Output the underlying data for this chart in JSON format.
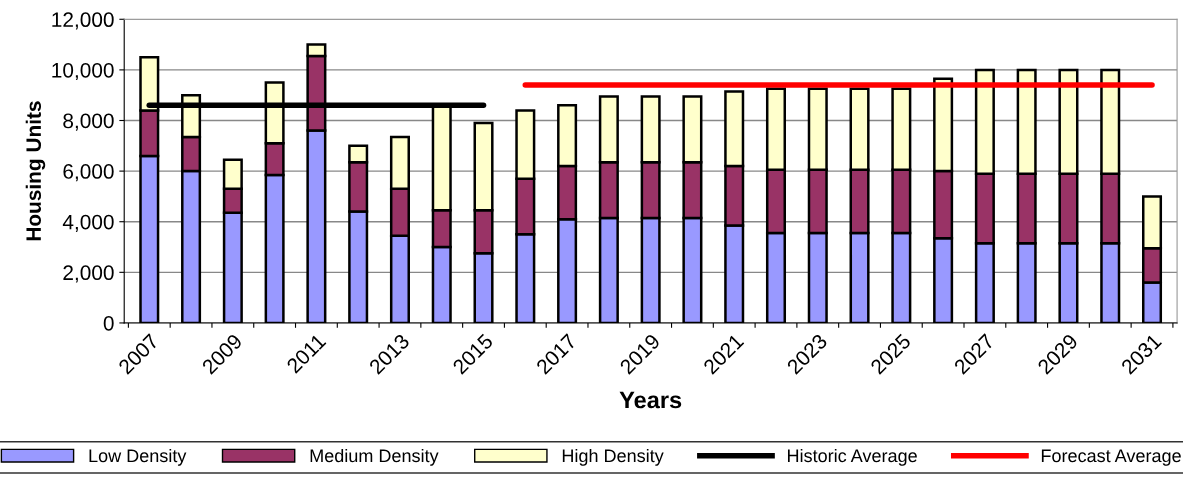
{
  "chart_data": {
    "type": "bar",
    "stacked": true,
    "xlabel": "Years",
    "ylabel": "Housing Units",
    "categories": [
      "2007",
      null,
      "2009",
      null,
      "2011",
      null,
      "2013",
      null,
      "2015",
      null,
      "2017",
      null,
      "2019",
      null,
      "2021",
      null,
      "2023",
      null,
      "2025",
      null,
      "2027",
      null,
      "2029",
      null,
      "2031"
    ],
    "series": [
      {
        "name": "Low Density",
        "color": "#9999ff",
        "values": [
          6600,
          6000,
          4350,
          5850,
          7600,
          4400,
          3450,
          3000,
          2750,
          3500,
          4100,
          4150,
          4150,
          4150,
          3850,
          3550,
          3550,
          3550,
          3550,
          3350,
          3150,
          3150,
          3150,
          3150,
          1600
        ]
      },
      {
        "name": "Medium Density",
        "color": "#993366",
        "values": [
          1800,
          1350,
          950,
          1250,
          2950,
          1950,
          1850,
          1450,
          1700,
          2200,
          2100,
          2200,
          2200,
          2200,
          2350,
          2500,
          2500,
          2500,
          2500,
          2650,
          2750,
          2750,
          2750,
          2750,
          1350
        ]
      },
      {
        "name": "High Density",
        "color": "#ffffcc",
        "values": [
          2100,
          1650,
          1150,
          2400,
          450,
          650,
          2050,
          4150,
          3450,
          2700,
          2400,
          2600,
          2600,
          2600,
          2950,
          3200,
          3200,
          3200,
          3200,
          3650,
          4100,
          4100,
          4100,
          4100,
          2050
        ]
      },
      {
        "name": "Historic Average",
        "type": "line",
        "color": "#000000",
        "values": [
          8600,
          8600,
          8600,
          8600,
          8600,
          8600,
          8600,
          8600,
          8600,
          null,
          null,
          null,
          null,
          null,
          null,
          null,
          null,
          null,
          null,
          null,
          null,
          null,
          null,
          null,
          null
        ]
      },
      {
        "name": "Forecast Average",
        "type": "line",
        "color": "#ff0000",
        "values": [
          null,
          null,
          null,
          null,
          null,
          null,
          null,
          null,
          null,
          9400,
          9400,
          9400,
          9400,
          9400,
          9400,
          9400,
          9400,
          9400,
          9400,
          9400,
          9400,
          9400,
          9400,
          9400,
          9400
        ]
      }
    ],
    "ylim": [
      0,
      12000
    ],
    "yticks": [
      {
        "value": 0,
        "label": "0"
      },
      {
        "value": 2000,
        "label": "2,000"
      },
      {
        "value": 4000,
        "label": "4,000"
      },
      {
        "value": 6000,
        "label": "6,000"
      },
      {
        "value": 8000,
        "label": "8,000"
      },
      {
        "value": 10000,
        "label": "10,000"
      },
      {
        "value": 12000,
        "label": "12,000"
      }
    ],
    "grid": "y",
    "legend": "bottom"
  }
}
